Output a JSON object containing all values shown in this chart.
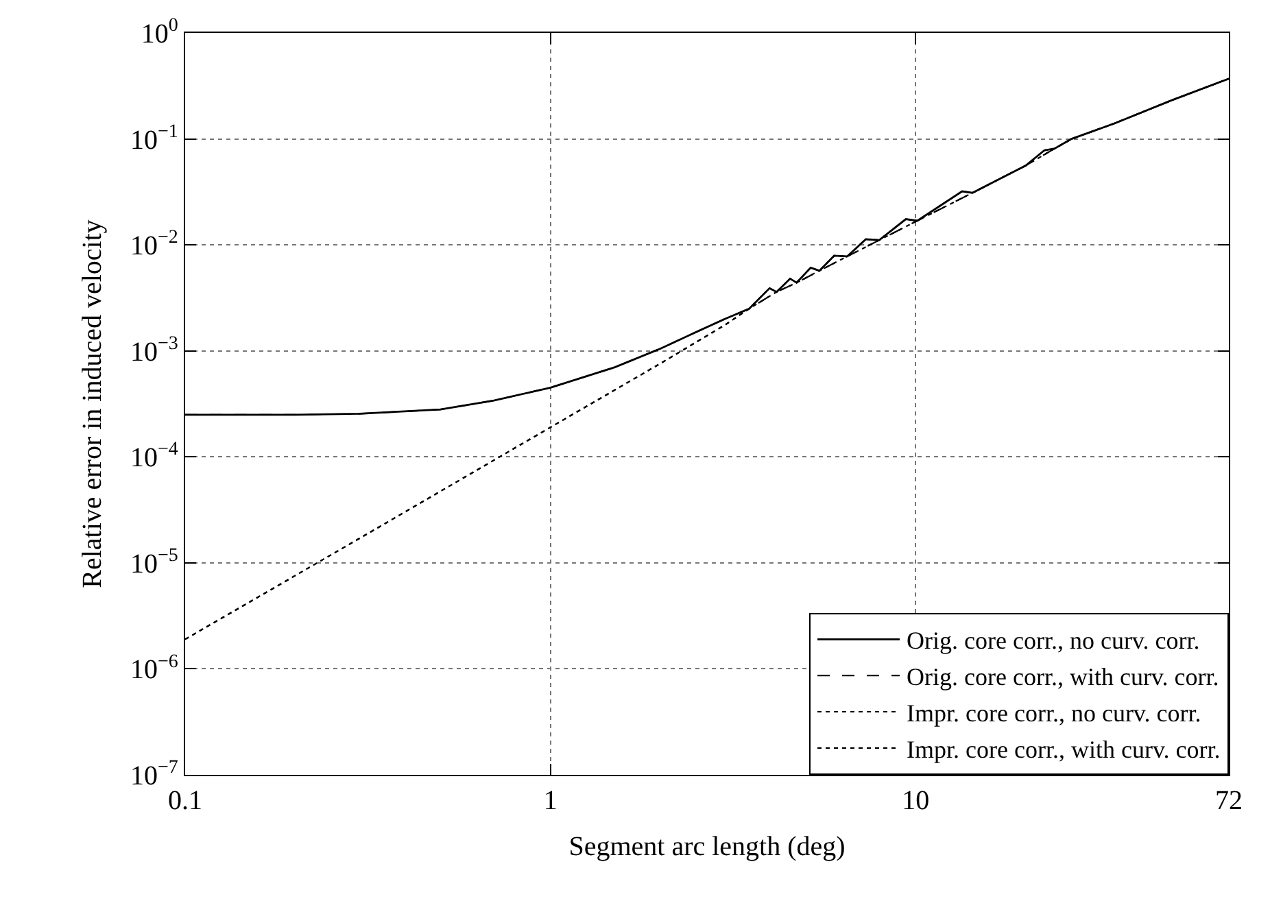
{
  "chart_data": {
    "type": "line",
    "xlabel": "Segment arc length (deg)",
    "ylabel": "Relative error in induced velocity",
    "log": "xy",
    "grid": true,
    "legend": "bottom right",
    "xlim": [
      0.1,
      72
    ],
    "xticks": [
      0.1,
      1,
      10,
      72
    ],
    "ylim": [
      1e-07,
      1
    ],
    "yticks": [
      {
        "value": 1,
        "label": "10$^{0}$"
      },
      {
        "value": 0.1,
        "label": "10$^{−1}$"
      },
      {
        "value": 0.01,
        "label": "10$^{−2}$"
      },
      {
        "value": 0.001,
        "label": "10$^{−3}$"
      },
      {
        "value": 0.0001,
        "label": "10$^{−4}$"
      },
      {
        "value": 1e-05,
        "label": "10$^{−5}$"
      },
      {
        "value": 1e-06,
        "label": "10$^{−6}$"
      },
      {
        "value": 1e-07,
        "label": "10$^{−7}$"
      }
    ],
    "series": [
      {
        "name": "Orig. core corr., no curv. corr.",
        "color": "#000000",
        "line_style": "solid",
        "x": [
          0.1,
          0.2,
          0.3,
          0.5,
          0.7,
          1,
          1.5,
          2,
          2.5,
          3,
          3.5,
          3.98,
          4.16,
          4.53,
          4.72,
          5.16,
          5.45,
          5.98,
          6.5,
          7.3,
          7.95,
          9.4,
          10.1,
          13.4,
          14.3,
          20,
          22.5,
          24,
          26.7,
          35,
          50,
          72
        ],
        "values": [
          0.00025,
          0.00025,
          0.000255,
          0.00028,
          0.00034,
          0.00045,
          0.0007,
          0.00105,
          0.0015,
          0.002,
          0.0025,
          0.0039,
          0.0036,
          0.0048,
          0.0044,
          0.0061,
          0.0057,
          0.0079,
          0.0078,
          0.0113,
          0.0111,
          0.0175,
          0.0169,
          0.032,
          0.031,
          0.056,
          0.078,
          0.081,
          0.1,
          0.14,
          0.23,
          0.37
        ]
      },
      {
        "name": "Orig. core corr., with curv. corr.",
        "color": "#000000",
        "line_style": "dashed",
        "x": [
          0.1,
          0.2,
          0.3,
          0.5,
          0.7,
          1,
          1.5,
          2,
          2.5,
          3,
          3.5,
          4.16,
          4.72,
          5.45,
          6.5,
          7.95,
          10.1,
          14.3,
          20,
          24,
          26.7,
          35,
          50,
          72
        ],
        "values": [
          0.00025,
          0.00025,
          0.000255,
          0.00028,
          0.00034,
          0.00045,
          0.0007,
          0.00105,
          0.0015,
          0.002,
          0.0025,
          0.0036,
          0.0044,
          0.0057,
          0.0078,
          0.0111,
          0.0169,
          0.031,
          0.056,
          0.081,
          0.1,
          0.14,
          0.23,
          0.37
        ]
      },
      {
        "name": "Impr. core corr., no curv. corr.",
        "color": "#000000",
        "line_style": "dotted",
        "x": [
          0.1,
          0.3,
          1,
          2,
          3,
          3.5,
          3.98,
          4.16,
          4.53,
          4.72,
          5.16,
          5.45,
          5.98,
          6.5,
          7.3,
          7.95,
          9.4,
          10.1,
          13.4,
          14.3,
          20,
          22.5,
          24,
          26.7,
          35,
          50,
          72
        ],
        "values": [
          1.9e-06,
          1.7e-05,
          0.00019,
          0.00076,
          0.00175,
          0.0025,
          0.0039,
          0.0036,
          0.0048,
          0.0044,
          0.0061,
          0.0057,
          0.0079,
          0.0078,
          0.0113,
          0.0111,
          0.0175,
          0.0169,
          0.032,
          0.031,
          0.056,
          0.078,
          0.081,
          0.1,
          0.14,
          0.23,
          0.37
        ]
      },
      {
        "name": "Impr. core corr., with curv. corr.",
        "color": "#000000",
        "line_style": "dotted",
        "x": [
          0.1,
          0.3,
          1,
          2,
          3,
          3.5,
          4.16,
          4.72,
          5.45,
          6.5,
          7.95,
          10.1,
          14.3,
          20,
          24,
          26.7,
          35,
          50,
          72
        ],
        "values": [
          1.9e-06,
          1.7e-05,
          0.00019,
          0.00076,
          0.00175,
          0.0025,
          0.0036,
          0.0044,
          0.0057,
          0.0078,
          0.0111,
          0.0169,
          0.031,
          0.056,
          0.081,
          0.1,
          0.14,
          0.23,
          0.37
        ]
      }
    ]
  }
}
